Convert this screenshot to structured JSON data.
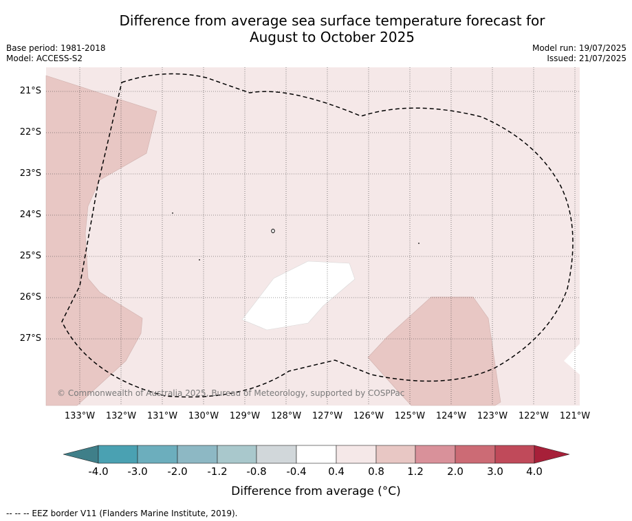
{
  "title": {
    "line1": "Difference from average sea surface temperature forecast for",
    "line2": "August to October 2025"
  },
  "meta": {
    "base_period": "Base period: 1981-2018",
    "model": "Model: ACCESS-S2",
    "model_run": "Model run: 19/07/2025",
    "issued": "Issued: 21/07/2025"
  },
  "map": {
    "lat_labels": [
      "21°S",
      "22°S",
      "23°S",
      "24°S",
      "25°S",
      "26°S",
      "27°S"
    ],
    "lon_labels": [
      "133°W",
      "132°W",
      "131°W",
      "130°W",
      "129°W",
      "128°W",
      "127°W",
      "126°W",
      "125°W",
      "124°W",
      "123°W",
      "122°W",
      "121°W"
    ],
    "copyright": "© Commonwealth of Australia 2025, Bureau of Meteorology, supported by COSPPac",
    "background_class_color": "#f5e8e8",
    "warm_class_color": "#e8c7c4",
    "neutral_color": "#ffffff"
  },
  "colorbar": {
    "labels": [
      "-4.0",
      "-3.0",
      "-2.0",
      "-1.2",
      "-0.8",
      "-0.4",
      "0.4",
      "0.8",
      "1.2",
      "2.0",
      "3.0",
      "4.0"
    ],
    "colors": [
      "#3f7f89",
      "#4aa1b2",
      "#6caebd",
      "#8db8c4",
      "#a9c8cc",
      "#d1d7da",
      "#ffffff",
      "#f5e8e8",
      "#e8c7c4",
      "#d9919a",
      "#cc6b75",
      "#c04a5a",
      "#a72039"
    ],
    "title": "Difference from average (°C)"
  },
  "footnote": "--  --  -- EEZ border V11 (Flanders Marine Institute, 2019)."
}
